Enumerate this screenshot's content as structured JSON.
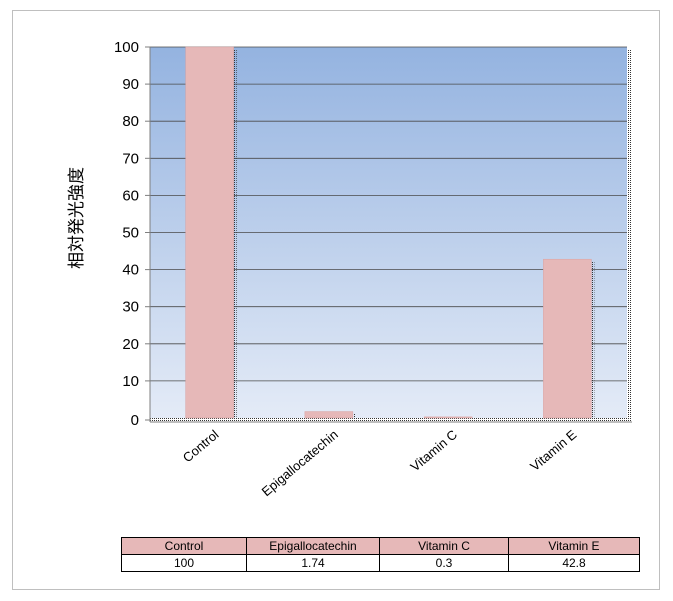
{
  "chart_data": {
    "type": "bar",
    "categories": [
      "Control",
      "Epigallocatechin",
      "Vitamin C",
      "Vitamin E"
    ],
    "values": [
      100,
      1.74,
      0.3,
      42.8
    ],
    "table_values": [
      "100",
      "1.74",
      "0.3",
      "42.8"
    ],
    "ylabel": "相対発光強度",
    "ylim": [
      0,
      100
    ],
    "yticks": [
      0,
      10,
      20,
      30,
      40,
      50,
      60,
      70,
      80,
      90,
      100
    ],
    "grid": true,
    "legend": "none"
  },
  "colors": {
    "bar": "#e6b8b8",
    "plot_top": "#94b3e0",
    "plot_bottom": "#e4ebf7",
    "gridline": "#4a4a4a"
  }
}
